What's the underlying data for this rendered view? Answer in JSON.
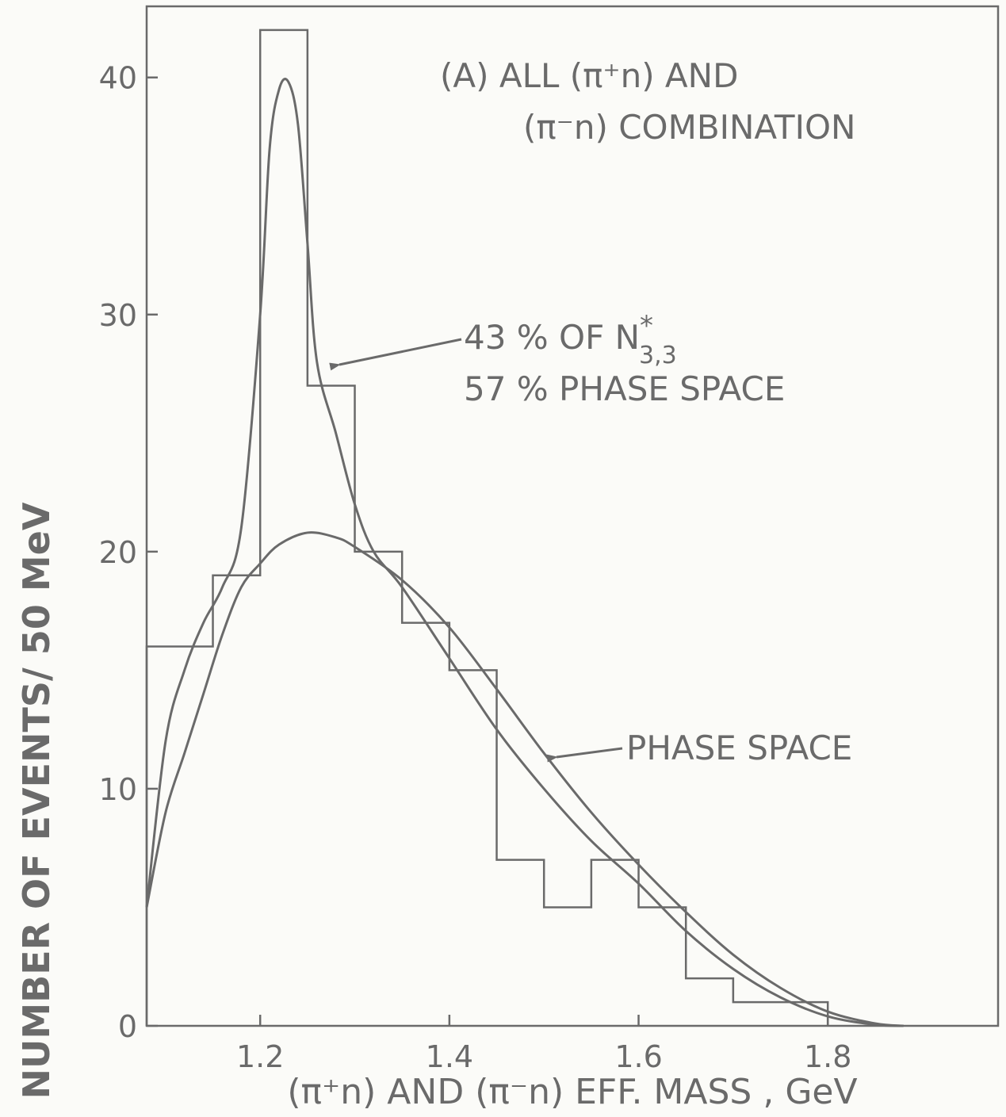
{
  "chart_data": {
    "type": "line",
    "title_line1": "(A) ALL (π⁺n) AND",
    "title_line2": "(π⁻n) COMBINATION",
    "xlabel": "(π⁺n) AND (π⁻n) EFF. MASS , GeV",
    "ylabel": "NUMBER OF EVENTS/ 50 MeV",
    "xlim": [
      1.08,
      1.98
    ],
    "ylim": [
      0,
      43
    ],
    "x_ticks": [
      1.2,
      1.4,
      1.6,
      1.8
    ],
    "x_tick_labels": [
      "1.2",
      "1.4",
      "1.6",
      "1.8"
    ],
    "y_ticks": [
      0,
      10,
      20,
      30,
      40
    ],
    "y_tick_labels": [
      "0",
      "10",
      "20",
      "30",
      "40"
    ],
    "grid": false,
    "histogram": {
      "name": "Events",
      "bin_edges": [
        1.08,
        1.15,
        1.2,
        1.25,
        1.3,
        1.35,
        1.4,
        1.45,
        1.5,
        1.55,
        1.6,
        1.65,
        1.7,
        1.8
      ],
      "counts": [
        16,
        19,
        42,
        27,
        20,
        17,
        15,
        7,
        5,
        7,
        5,
        2,
        1
      ]
    },
    "series": [
      {
        "kind": "fit",
        "x": [
          1.08,
          1.1,
          1.12,
          1.14,
          1.16,
          1.18,
          1.2,
          1.21,
          1.22,
          1.23,
          1.24,
          1.25,
          1.26,
          1.28,
          1.3,
          1.32,
          1.35,
          1.4,
          1.45,
          1.5,
          1.55,
          1.6,
          1.65,
          1.7,
          1.75,
          1.8,
          1.85,
          1.88
        ],
        "y": [
          5,
          12,
          15,
          17,
          18.5,
          21,
          30,
          37,
          39.5,
          39.8,
          38,
          33,
          28,
          25,
          22,
          20,
          18.5,
          15.5,
          12.5,
          10,
          7.8,
          6,
          4,
          2.4,
          1.2,
          0.4,
          0.05,
          0
        ]
      },
      {
        "kind": "phase-space",
        "x": [
          1.08,
          1.1,
          1.12,
          1.14,
          1.16,
          1.18,
          1.2,
          1.22,
          1.25,
          1.28,
          1.3,
          1.35,
          1.4,
          1.45,
          1.5,
          1.55,
          1.6,
          1.65,
          1.7,
          1.75,
          1.8,
          1.85,
          1.88
        ],
        "y": [
          5,
          9,
          11.5,
          14,
          16.5,
          18.5,
          19.5,
          20.3,
          20.8,
          20.6,
          20.2,
          18.8,
          16.8,
          14.2,
          11.5,
          9,
          6.8,
          4.8,
          3,
          1.6,
          0.6,
          0.1,
          0
        ]
      }
    ],
    "annotations": [
      {
        "id": "mix",
        "line1": "43 % OF  N",
        "star": "*",
        "sub": "3,3",
        "line2": "57 % PHASE  SPACE",
        "points_to": "fit"
      },
      {
        "id": "ps",
        "text": "PHASE  SPACE",
        "points_to": "phase-space"
      }
    ],
    "colors": {
      "ink": "#6a6a6a",
      "paper": "#fbfbf8"
    }
  }
}
